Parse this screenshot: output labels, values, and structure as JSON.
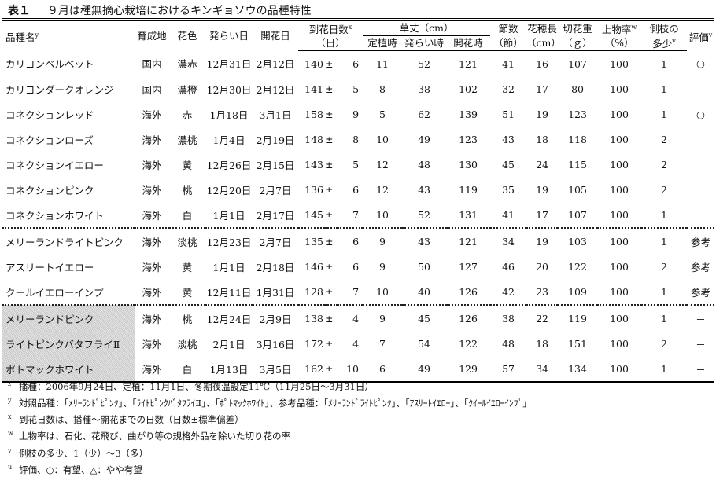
{
  "title": {
    "label": "表１",
    "text": "９月は種無摘心栽培におけるキンギョソウの品種特性"
  },
  "header": {
    "name": "品種名",
    "name_sup": "y",
    "origin": "育成地",
    "color": "花色",
    "bud_date": "発らい日",
    "flower_date": "開花日",
    "days": "到花日数",
    "days_sup": "x",
    "days_unit": "（日）",
    "height": "草丈（cm）",
    "h_plant": "定植時",
    "h_bud": "発らい時",
    "h_flower": "開花時",
    "nodes": "節数",
    "nodes_unit": "（節）",
    "spike": "花穂長",
    "spike_unit": "（cm）",
    "weight": "切花重",
    "weight_unit": "（ｇ）",
    "rate": "上物率",
    "rate_sup": "w",
    "rate_unit": "（%）",
    "branch": "側枝の",
    "branch2": "多少",
    "branch_sup": "v",
    "eval": "評価",
    "eval_sup": "v"
  },
  "rows": [
    {
      "name": "カリヨンベルベット",
      "origin": "国内",
      "color": "濃赤",
      "bud": "12月31日",
      "flower": "2月12日",
      "days": "140",
      "pm": "±",
      "sd": "6",
      "h1": "11",
      "h2": "52",
      "h3": "121",
      "nodes": "41",
      "spike": "16",
      "weight": "107",
      "rate": "100",
      "branch": "1",
      "eval": "○"
    },
    {
      "name": "カリヨンダークオレンジ",
      "origin": "国内",
      "color": "濃橙",
      "bud": "12月30日",
      "flower": "2月12日",
      "days": "141",
      "pm": "±",
      "sd": "5",
      "h1": "8",
      "h2": "38",
      "h3": "102",
      "nodes": "32",
      "spike": "17",
      "weight": "80",
      "rate": "100",
      "branch": "1",
      "eval": ""
    },
    {
      "name": "コネクションレッド",
      "origin": "海外",
      "color": "赤",
      "bud": "1月18日",
      "flower": "3月1日",
      "days": "158",
      "pm": "±",
      "sd": "9",
      "h1": "5",
      "h2": "62",
      "h3": "139",
      "nodes": "51",
      "spike": "19",
      "weight": "123",
      "rate": "100",
      "branch": "1",
      "eval": "○"
    },
    {
      "name": "コネクションローズ",
      "origin": "海外",
      "color": "濃桃",
      "bud": "1月4日",
      "flower": "2月19日",
      "days": "148",
      "pm": "±",
      "sd": "8",
      "h1": "10",
      "h2": "49",
      "h3": "123",
      "nodes": "43",
      "spike": "18",
      "weight": "118",
      "rate": "100",
      "branch": "2",
      "eval": ""
    },
    {
      "name": "コネクションイエロー",
      "origin": "海外",
      "color": "黄",
      "bud": "12月26日",
      "flower": "2月15日",
      "days": "143",
      "pm": "±",
      "sd": "5",
      "h1": "12",
      "h2": "48",
      "h3": "130",
      "nodes": "45",
      "spike": "24",
      "weight": "115",
      "rate": "100",
      "branch": "2",
      "eval": ""
    },
    {
      "name": "コネクションピンク",
      "origin": "海外",
      "color": "桃",
      "bud": "12月20日",
      "flower": "2月7日",
      "days": "136",
      "pm": "±",
      "sd": "6",
      "h1": "12",
      "h2": "43",
      "h3": "119",
      "nodes": "35",
      "spike": "19",
      "weight": "105",
      "rate": "100",
      "branch": "2",
      "eval": ""
    },
    {
      "name": "コネクションホワイト",
      "origin": "海外",
      "color": "白",
      "bud": "1月1日",
      "flower": "2月17日",
      "days": "145",
      "pm": "±",
      "sd": "7",
      "h1": "10",
      "h2": "52",
      "h3": "131",
      "nodes": "41",
      "spike": "17",
      "weight": "107",
      "rate": "100",
      "branch": "1",
      "eval": ""
    },
    {
      "name": "メリーランドライトピンク",
      "origin": "海外",
      "color": "淡桃",
      "bud": "12月23日",
      "flower": "2月7日",
      "days": "135",
      "pm": "±",
      "sd": "6",
      "h1": "9",
      "h2": "43",
      "h3": "121",
      "nodes": "34",
      "spike": "19",
      "weight": "103",
      "rate": "100",
      "branch": "1",
      "eval": "参考"
    },
    {
      "name": "アスリートイエロー",
      "origin": "海外",
      "color": "黄",
      "bud": "1月1日",
      "flower": "2月18日",
      "days": "146",
      "pm": "±",
      "sd": "6",
      "h1": "9",
      "h2": "50",
      "h3": "127",
      "nodes": "46",
      "spike": "20",
      "weight": "122",
      "rate": "100",
      "branch": "2",
      "eval": "参考"
    },
    {
      "name": "クールイエローインプ",
      "origin": "海外",
      "color": "黄",
      "bud": "12月11日",
      "flower": "1月31日",
      "days": "128",
      "pm": "±",
      "sd": "7",
      "h1": "10",
      "h2": "40",
      "h3": "126",
      "nodes": "42",
      "spike": "23",
      "weight": "109",
      "rate": "100",
      "branch": "1",
      "eval": "参考"
    },
    {
      "name": "メリーランドピンク",
      "origin": "海外",
      "color": "桃",
      "bud": "12月24日",
      "flower": "2月9日",
      "days": "138",
      "pm": "±",
      "sd": "4",
      "h1": "9",
      "h2": "45",
      "h3": "126",
      "nodes": "38",
      "spike": "22",
      "weight": "119",
      "rate": "100",
      "branch": "1",
      "eval": "－"
    },
    {
      "name": "ライトピンクバタフライⅡ",
      "origin": "海外",
      "color": "淡桃",
      "bud": "2月1日",
      "flower": "3月16日",
      "days": "172",
      "pm": "±",
      "sd": "4",
      "h1": "7",
      "h2": "54",
      "h3": "122",
      "nodes": "48",
      "spike": "18",
      "weight": "151",
      "rate": "100",
      "branch": "2",
      "eval": "－"
    },
    {
      "name": "ポトマックホワイト",
      "origin": "海外",
      "color": "白",
      "bud": "1月13日",
      "flower": "3月5日",
      "days": "162",
      "pm": "±",
      "sd": "10",
      "h1": "6",
      "h2": "49",
      "h3": "129",
      "nodes": "57",
      "spike": "34",
      "weight": "134",
      "rate": "100",
      "branch": "1",
      "eval": "－"
    }
  ],
  "notes": [
    {
      "mark": "z",
      "text": "播種：2006年9月24日、定植：11月1日、冬期夜温設定11℃（11月25日～3月31日）"
    },
    {
      "mark": "y",
      "text": "対照品種：「ﾒﾘｰﾗﾝﾄﾞﾋﾟﾝｸ」、「ﾗｲﾄﾋﾟﾝｸﾊﾞﾀﾌﾗｲⅡ」、「ﾎﾟﾄﾏｯｸﾎﾜｲﾄ」、参考品種：「ﾒﾘｰﾗﾝﾄﾞﾗｲﾄﾋﾟﾝｸ」、「ｱｽﾘｰﾄｲｴﾛｰ」、「ｸｲｰﾙｲｴﾛｰｲﾝﾌﾟ」"
    },
    {
      "mark": "x",
      "text": "到花日数は、播種～開花までの日数（日数±標準偏差）"
    },
    {
      "mark": "w",
      "text": "上物率は、石化、花飛び、曲がり等の規格外品を除いた切り花の率"
    },
    {
      "mark": "v",
      "text": "側枝の多少、1（少）～3（多）"
    },
    {
      "mark": "u",
      "text": "評価、○：有望、△：やや有望"
    }
  ]
}
